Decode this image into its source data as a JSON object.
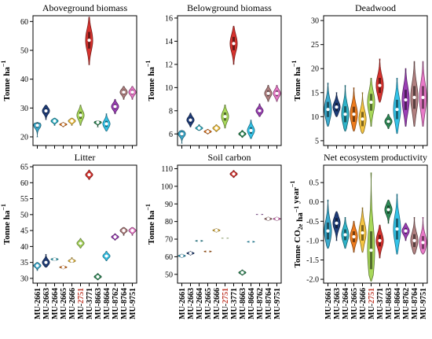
{
  "chart_data": [
    {
      "type": "violin",
      "title": "Aboveground biomass",
      "ylabel": "Tonne ha",
      "ylabel_sup": "−1",
      "ylim": [
        17,
        62
      ],
      "yticks": [
        20,
        30,
        40,
        50,
        60
      ],
      "categories": [
        "MU-2661",
        "MU-2663",
        "MU-2664",
        "MU-2665",
        "MU-2666",
        "MU-2751",
        "MU-3771",
        "MU-8663",
        "MU-8664",
        "MU-8762",
        "MU-8764",
        "MU-9751"
      ],
      "series": [
        {
          "values": [
            24,
            29,
            25.5,
            24.3,
            25.5,
            27.5,
            53.5,
            25,
            24.5,
            30.5,
            35.5,
            35.5
          ],
          "min": [
            20,
            26,
            24,
            23.5,
            24,
            24,
            45,
            23.5,
            22,
            28,
            33,
            33
          ],
          "max": [
            25,
            31,
            26.5,
            25,
            26.5,
            31,
            61.5,
            25.5,
            28,
            33,
            37.5,
            37.5
          ]
        }
      ]
    },
    {
      "type": "violin",
      "title": "Belowground biomass",
      "ylabel": "Tonne ha",
      "ylabel_sup": "−1",
      "ylim": [
        5,
        16.2
      ],
      "yticks": [
        6,
        8,
        10,
        12,
        14,
        16
      ],
      "categories": [
        "MU-2661",
        "MU-2663",
        "MU-2664",
        "MU-2665",
        "MU-2666",
        "MU-2751",
        "MU-3771",
        "MU-8663",
        "MU-8664",
        "MU-8762",
        "MU-8764",
        "MU-9751"
      ],
      "series": [
        {
          "values": [
            6,
            7.2,
            6.5,
            6.2,
            6.5,
            7.5,
            13.8,
            6,
            6.3,
            8,
            9.5,
            9.5
          ],
          "min": [
            5.2,
            6.6,
            6.3,
            6,
            6.2,
            6.5,
            12,
            5.7,
            5.6,
            7.5,
            8.8,
            8.8
          ],
          "max": [
            6.3,
            7.8,
            6.8,
            6.4,
            6.8,
            8.5,
            15.3,
            6.3,
            7.2,
            8.6,
            10.2,
            10.2
          ]
        }
      ]
    },
    {
      "type": "violin",
      "title": "Deadwood",
      "ylabel": "Tonne ha",
      "ylabel_sup": "−1",
      "ylim": [
        4,
        31
      ],
      "yticks": [
        5,
        10,
        15,
        20,
        25,
        30
      ],
      "categories": [
        "MU-2661",
        "MU-2663",
        "MU-2664",
        "MU-2665",
        "MU-2666",
        "MU-2751",
        "MU-3771",
        "MU-8663",
        "MU-8664",
        "MU-8762",
        "MU-8764",
        "MU-9751"
      ],
      "series": [
        {
          "values": [
            11.5,
            12,
            10.5,
            10.5,
            9.5,
            13,
            16.5,
            9,
            11.5,
            13.5,
            14,
            14
          ],
          "min": [
            8,
            10,
            7,
            7,
            6.5,
            8,
            13,
            7.5,
            6.5,
            8,
            8,
            8
          ],
          "max": [
            17,
            15,
            16.5,
            16,
            15,
            18,
            22,
            10.5,
            18,
            20,
            21.5,
            21.5
          ]
        }
      ]
    },
    {
      "type": "violin",
      "title": "Litter",
      "ylabel": "Tonne ha",
      "ylabel_sup": "−1",
      "ylim": [
        28.5,
        65.5
      ],
      "yticks": [
        30,
        35,
        40,
        45,
        50,
        55,
        60,
        65
      ],
      "categories": [
        "MU-2661",
        "MU-2663",
        "MU-2664",
        "MU-2665",
        "MU-2666",
        "MU-2751",
        "MU-3771",
        "MU-8663",
        "MU-8664",
        "MU-8762",
        "MU-8764",
        "MU-9751"
      ],
      "series": [
        {
          "values": [
            34,
            35,
            36,
            33.5,
            35.5,
            41,
            62.5,
            30.5,
            37,
            43,
            45,
            45
          ],
          "min": [
            32.5,
            33.5,
            35.5,
            33,
            35,
            39.5,
            61,
            29.5,
            35.5,
            42,
            43.5,
            43.5
          ],
          "max": [
            35,
            37.5,
            36.5,
            34,
            36.5,
            42.5,
            64,
            31.5,
            38.5,
            44,
            46,
            46
          ]
        }
      ]
    },
    {
      "type": "violin",
      "title": "Soil carbon",
      "ylabel": "Tonne ha",
      "ylabel_sup": "−1",
      "ylim": [
        45,
        112
      ],
      "yticks": [
        50,
        60,
        70,
        80,
        90,
        100,
        110
      ],
      "categories": [
        "MU-2661",
        "MU-2663",
        "MU-2664",
        "MU-2665",
        "MU-2666",
        "MU-2751",
        "MU-3771",
        "MU-8663",
        "MU-8664",
        "MU-8762",
        "MU-8764",
        "MU-9751"
      ],
      "series": [
        {
          "values": [
            60.5,
            62,
            69,
            63,
            75,
            70.5,
            107,
            51,
            68.5,
            84,
            81.5,
            81.5
          ],
          "min": [
            59.5,
            61,
            68.5,
            62.5,
            74,
            70.5,
            105,
            49.5,
            68,
            84,
            80.5,
            80.5
          ],
          "max": [
            61.5,
            63,
            69.5,
            63.5,
            76,
            70.5,
            109,
            52.5,
            69,
            84,
            82.5,
            82.5
          ]
        }
      ]
    },
    {
      "type": "violin",
      "title": "Net ecosystem productivity",
      "ylabel": "Tonne CO",
      "ylabel_sub": "2e",
      "ylabel_tail": " ha",
      "ylabel_sup": "−1",
      "ylabel_tail2": " year",
      "ylabel_sup2": "−1",
      "ylim": [
        -2.1,
        0.95
      ],
      "yticks": [
        -2.0,
        -1.5,
        -1.0,
        -0.5,
        0.0,
        0.5
      ],
      "categories": [
        "MU-2661",
        "MU-2663",
        "MU-2664",
        "MU-2665",
        "MU-2666",
        "MU-2751",
        "MU-3771",
        "MU-8663",
        "MU-8664",
        "MU-8762",
        "MU-8764",
        "MU-9751"
      ],
      "series": [
        {
          "values": [
            -0.75,
            -0.55,
            -0.85,
            -0.9,
            -0.8,
            -1.25,
            -1.0,
            -0.2,
            -0.7,
            -0.75,
            -1.0,
            -1.05
          ],
          "min": [
            -1.2,
            -1.0,
            -1.2,
            -1.3,
            -1.3,
            -2.05,
            -1.45,
            -0.55,
            -1.35,
            -1.0,
            -1.35,
            -1.35
          ],
          "max": [
            0.05,
            -0.25,
            -0.4,
            -0.5,
            -0.15,
            0.75,
            -0.6,
            0.05,
            0.2,
            -0.55,
            -0.4,
            -0.4
          ]
        }
      ]
    }
  ],
  "colors": [
    "#3aa9cc",
    "#1f3d7a",
    "#2fb3c8",
    "#ee7c1e",
    "#f5c542",
    "#a8d85a",
    "#d7322e",
    "#2e8b57",
    "#33c3e8",
    "#9b3fb5",
    "#b08080",
    "#e879c8"
  ],
  "highlight_color": "#c0392b"
}
